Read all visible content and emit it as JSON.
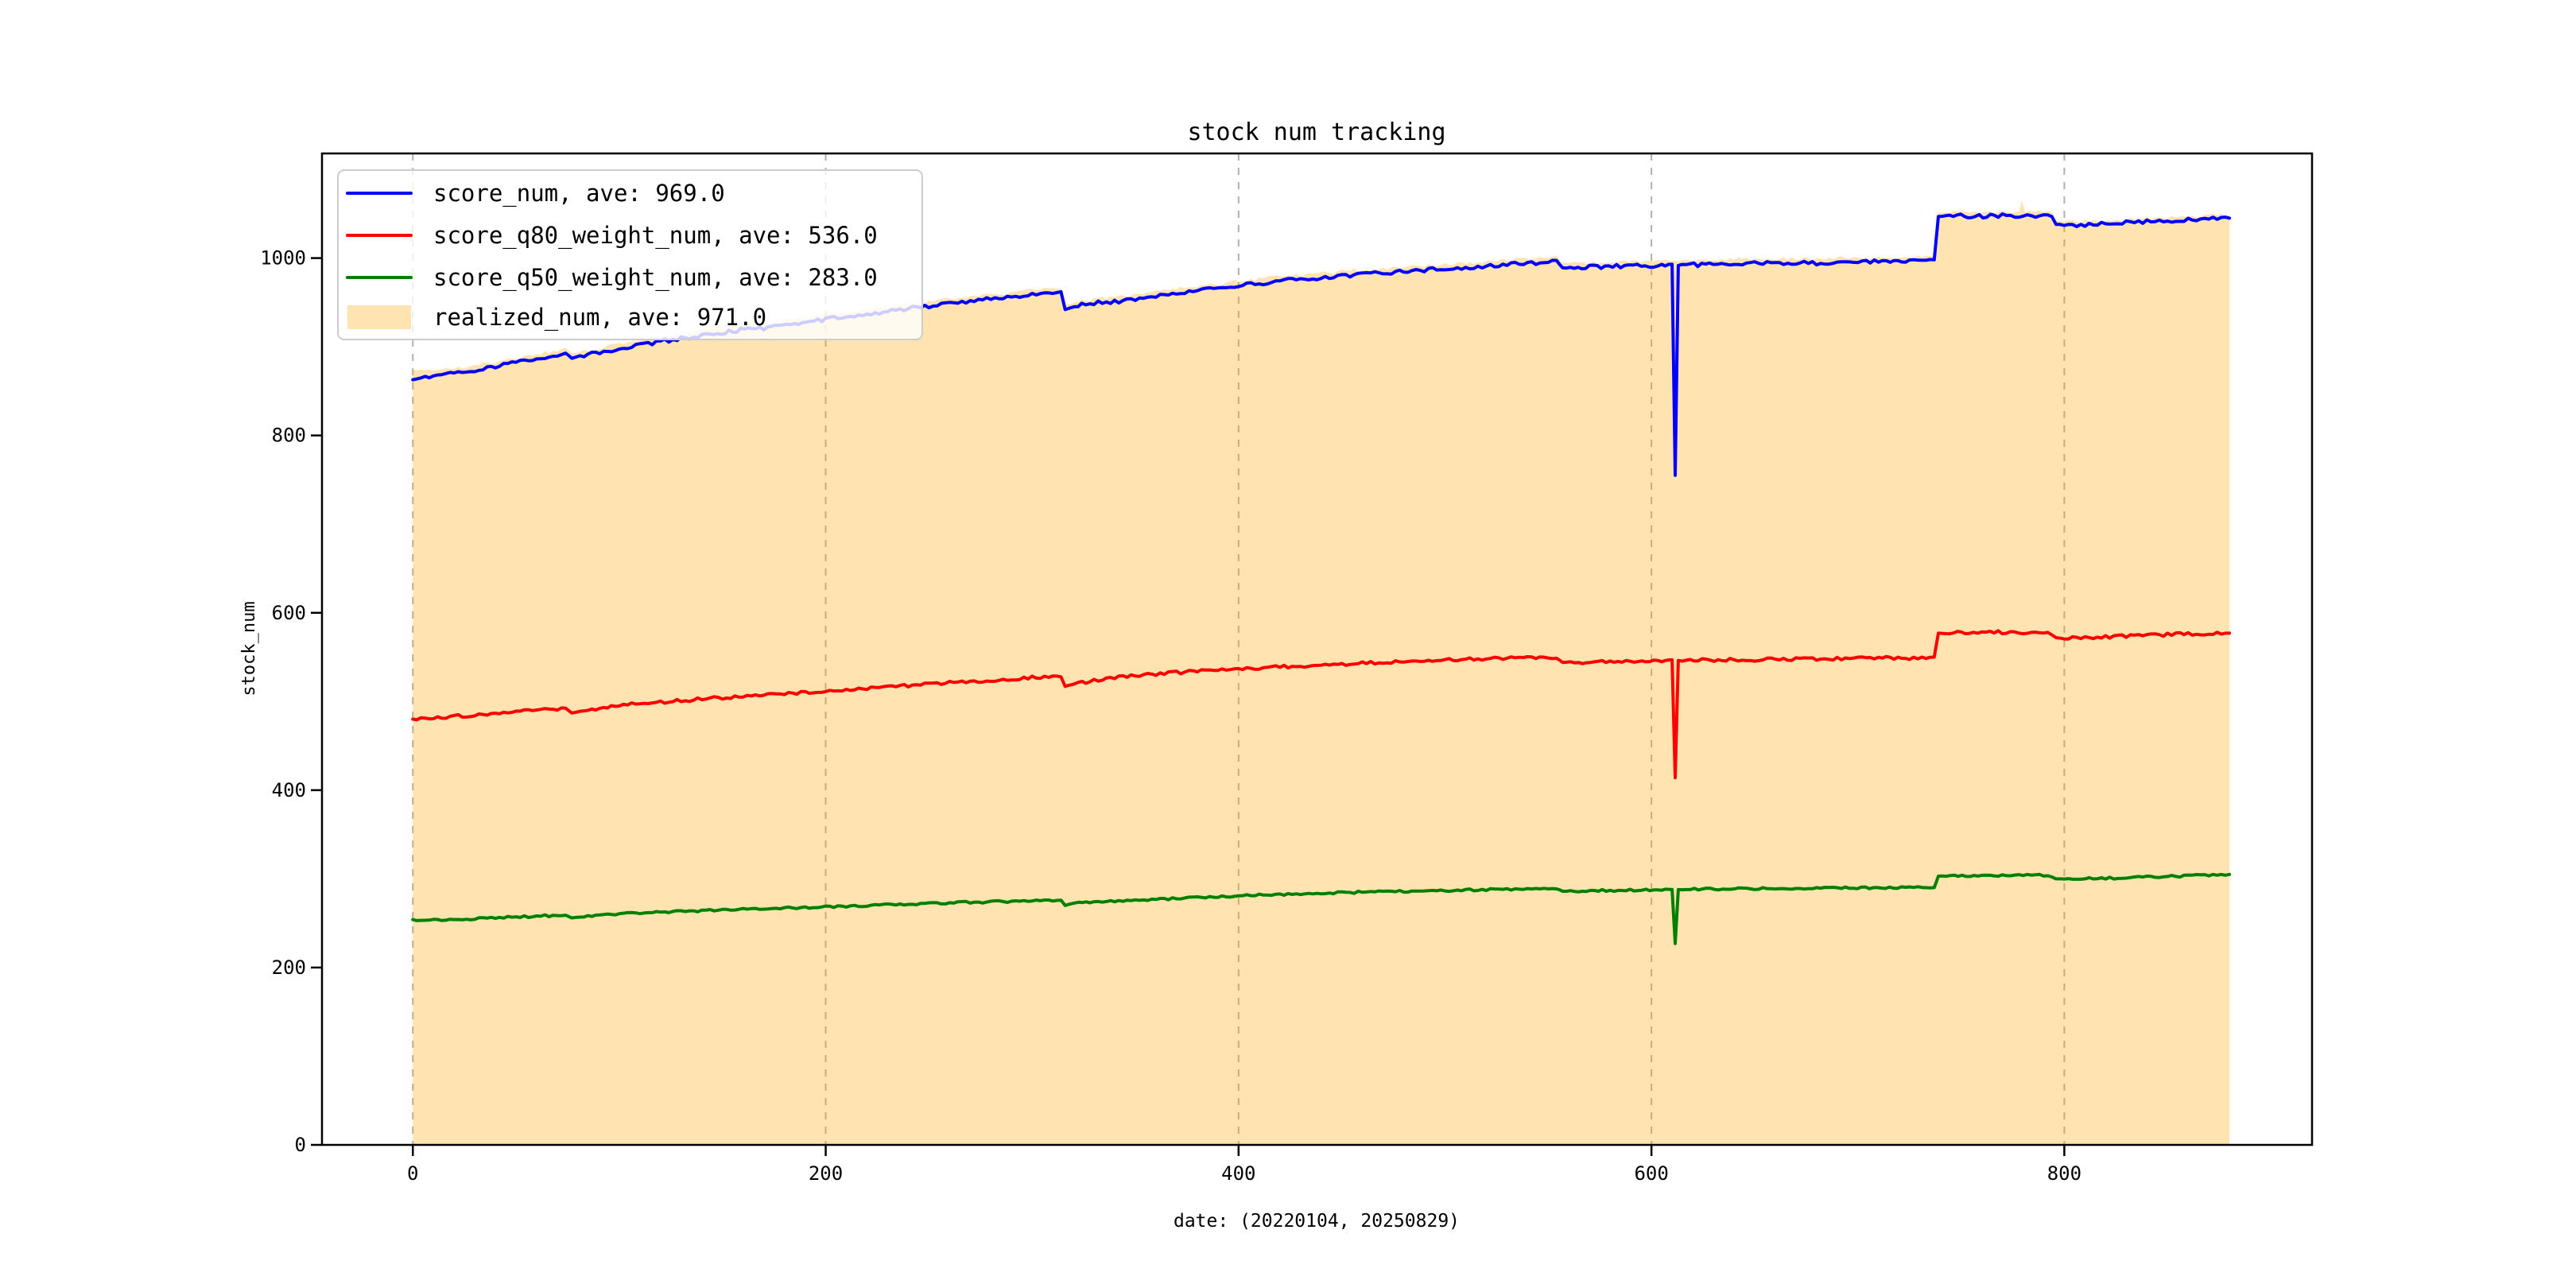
{
  "figure": {
    "background": "#ffffff"
  },
  "chart_data": {
    "type": "line",
    "title": "stock num tracking",
    "xlabel": "date: (20220104, 20250829)",
    "ylabel": "stock_num",
    "xlim": [
      -44,
      920
    ],
    "ylim": [
      0,
      1118
    ],
    "xticks": [
      0,
      200,
      400,
      600,
      800
    ],
    "yticks": [
      0,
      200,
      400,
      600,
      800,
      1000
    ],
    "grid": "vertical-dashed",
    "grid_color": "#b0b0b0",
    "spine_color": "#000000",
    "legend_position": "upper-left",
    "series": [
      {
        "name": "score_num, ave: 969.0",
        "kind": "line",
        "color": "#0000ff",
        "ave": 969.0,
        "points": [
          [
            0,
            865
          ],
          [
            20,
            870
          ],
          [
            40,
            878
          ],
          [
            60,
            886
          ],
          [
            74,
            893
          ],
          [
            77,
            887
          ],
          [
            81,
            889
          ],
          [
            100,
            898
          ],
          [
            120,
            906
          ],
          [
            140,
            913
          ],
          [
            155,
            918
          ],
          [
            170,
            921
          ],
          [
            185,
            926
          ],
          [
            200,
            931
          ],
          [
            220,
            937
          ],
          [
            240,
            943
          ],
          [
            260,
            949
          ],
          [
            280,
            954
          ],
          [
            300,
            959
          ],
          [
            314,
            962
          ],
          [
            316,
            942
          ],
          [
            319,
            944
          ],
          [
            324,
            947
          ],
          [
            332,
            950
          ],
          [
            342,
            951
          ],
          [
            360,
            957
          ],
          [
            380,
            963
          ],
          [
            400,
            969
          ],
          [
            420,
            974
          ],
          [
            440,
            978
          ],
          [
            460,
            982
          ],
          [
            480,
            985
          ],
          [
            500,
            988
          ],
          [
            520,
            991
          ],
          [
            540,
            994
          ],
          [
            554,
            997
          ],
          [
            557,
            989
          ],
          [
            570,
            990
          ],
          [
            585,
            991
          ],
          [
            605,
            992
          ],
          [
            610,
            993
          ],
          [
            611.5,
            755
          ],
          [
            613,
            992
          ],
          [
            630,
            993
          ],
          [
            650,
            994
          ],
          [
            670,
            994
          ],
          [
            690,
            995
          ],
          [
            710,
            996
          ],
          [
            725,
            996
          ],
          [
            737,
            998
          ],
          [
            739,
            1047
          ],
          [
            748,
            1048
          ],
          [
            757,
            1047
          ],
          [
            766,
            1048
          ],
          [
            776,
            1048
          ],
          [
            786,
            1048
          ],
          [
            792,
            1048
          ],
          [
            794,
            1047
          ],
          [
            796,
            1038
          ],
          [
            806,
            1037
          ],
          [
            816,
            1038
          ],
          [
            830,
            1040
          ],
          [
            850,
            1042
          ],
          [
            868,
            1044
          ],
          [
            880,
            1045
          ]
        ]
      },
      {
        "name": "score_q80_weight_num, ave: 536.0",
        "kind": "line",
        "color": "#ff0000",
        "ave": 536.0,
        "points": [
          [
            0,
            480
          ],
          [
            20,
            483
          ],
          [
            40,
            487
          ],
          [
            60,
            490
          ],
          [
            74,
            492
          ],
          [
            77,
            487
          ],
          [
            81,
            489
          ],
          [
            100,
            496
          ],
          [
            130,
            501
          ],
          [
            160,
            506
          ],
          [
            200,
            512
          ],
          [
            240,
            518
          ],
          [
            280,
            524
          ],
          [
            300,
            527
          ],
          [
            314,
            528
          ],
          [
            316,
            517
          ],
          [
            319,
            519
          ],
          [
            326,
            522
          ],
          [
            338,
            527
          ],
          [
            360,
            531
          ],
          [
            400,
            537
          ],
          [
            430,
            540
          ],
          [
            460,
            543
          ],
          [
            490,
            546
          ],
          [
            520,
            548
          ],
          [
            540,
            549
          ],
          [
            554,
            549
          ],
          [
            557,
            544
          ],
          [
            580,
            545
          ],
          [
            605,
            546
          ],
          [
            610,
            547
          ],
          [
            611.5,
            414
          ],
          [
            613,
            546
          ],
          [
            640,
            547
          ],
          [
            680,
            548
          ],
          [
            710,
            549
          ],
          [
            725,
            549
          ],
          [
            737,
            550
          ],
          [
            739,
            577
          ],
          [
            752,
            578
          ],
          [
            772,
            578
          ],
          [
            792,
            578
          ],
          [
            796,
            572
          ],
          [
            802,
            571
          ],
          [
            812,
            572
          ],
          [
            832,
            574
          ],
          [
            856,
            576
          ],
          [
            880,
            577
          ]
        ]
      },
      {
        "name": "score_q50_weight_num, ave: 283.0",
        "kind": "line",
        "color": "#008000",
        "ave": 283.0,
        "points": [
          [
            0,
            253
          ],
          [
            30,
            255
          ],
          [
            60,
            258
          ],
          [
            74,
            259
          ],
          [
            77,
            256
          ],
          [
            81,
            257
          ],
          [
            100,
            261
          ],
          [
            140,
            264
          ],
          [
            180,
            267
          ],
          [
            220,
            270
          ],
          [
            260,
            273
          ],
          [
            300,
            275
          ],
          [
            314,
            276
          ],
          [
            316,
            270
          ],
          [
            319,
            272
          ],
          [
            328,
            274
          ],
          [
            360,
            277
          ],
          [
            400,
            281
          ],
          [
            440,
            284
          ],
          [
            480,
            286
          ],
          [
            520,
            288
          ],
          [
            540,
            288
          ],
          [
            554,
            289
          ],
          [
            557,
            286
          ],
          [
            580,
            287
          ],
          [
            605,
            288
          ],
          [
            610,
            288
          ],
          [
            611.5,
            227
          ],
          [
            613,
            288
          ],
          [
            650,
            289
          ],
          [
            690,
            290
          ],
          [
            725,
            290
          ],
          [
            737,
            290
          ],
          [
            739,
            303
          ],
          [
            762,
            304
          ],
          [
            792,
            304
          ],
          [
            796,
            300
          ],
          [
            806,
            300
          ],
          [
            826,
            301
          ],
          [
            856,
            303
          ],
          [
            880,
            305
          ]
        ]
      },
      {
        "name": "realized_num, ave: 971.0",
        "kind": "area",
        "color": "#ffa500",
        "fill_alpha": 0.3,
        "ave": 971.0,
        "points": [
          [
            0,
            872
          ],
          [
            20,
            876
          ],
          [
            40,
            883
          ],
          [
            60,
            891
          ],
          [
            74,
            898
          ],
          [
            77,
            893
          ],
          [
            81,
            894
          ],
          [
            100,
            903
          ],
          [
            120,
            911
          ],
          [
            140,
            918
          ],
          [
            150,
            924
          ],
          [
            160,
            927
          ],
          [
            172,
            926
          ],
          [
            185,
            931
          ],
          [
            200,
            936
          ],
          [
            220,
            942
          ],
          [
            240,
            948
          ],
          [
            260,
            954
          ],
          [
            280,
            959
          ],
          [
            300,
            964
          ],
          [
            314,
            966
          ],
          [
            316,
            947
          ],
          [
            319,
            949
          ],
          [
            324,
            952
          ],
          [
            332,
            955
          ],
          [
            342,
            956
          ],
          [
            360,
            962
          ],
          [
            380,
            968
          ],
          [
            400,
            974
          ],
          [
            420,
            979
          ],
          [
            440,
            983
          ],
          [
            460,
            987
          ],
          [
            480,
            990
          ],
          [
            500,
            993
          ],
          [
            520,
            996
          ],
          [
            540,
            999
          ],
          [
            554,
            1002
          ],
          [
            557,
            994
          ],
          [
            570,
            995
          ],
          [
            585,
            996
          ],
          [
            605,
            997
          ],
          [
            613,
            997
          ],
          [
            630,
            998
          ],
          [
            650,
            999
          ],
          [
            670,
            999
          ],
          [
            690,
            1000
          ],
          [
            710,
            1001
          ],
          [
            725,
            1001
          ],
          [
            737,
            1002
          ],
          [
            739,
            1051
          ],
          [
            748,
            1052
          ],
          [
            757,
            1051
          ],
          [
            766,
            1052
          ],
          [
            776,
            1052
          ],
          [
            778,
            1052
          ],
          [
            779.5,
            1064
          ],
          [
            781,
            1052
          ],
          [
            786,
            1052
          ],
          [
            792,
            1052
          ],
          [
            794,
            1051
          ],
          [
            796,
            1042
          ],
          [
            806,
            1041
          ],
          [
            816,
            1042
          ],
          [
            830,
            1044
          ],
          [
            850,
            1046
          ],
          [
            868,
            1048
          ],
          [
            880,
            1049
          ]
        ]
      }
    ],
    "legend": {
      "items": [
        {
          "label": "score_num, ave: 969.0",
          "swatch": "line",
          "color": "#0000ff"
        },
        {
          "label": "score_q80_weight_num, ave: 536.0",
          "swatch": "line",
          "color": "#ff0000"
        },
        {
          "label": "score_q50_weight_num, ave: 283.0",
          "swatch": "line",
          "color": "#008000"
        },
        {
          "label": "realized_num, ave: 971.0",
          "swatch": "patch",
          "color": "#ffa500"
        }
      ]
    }
  }
}
